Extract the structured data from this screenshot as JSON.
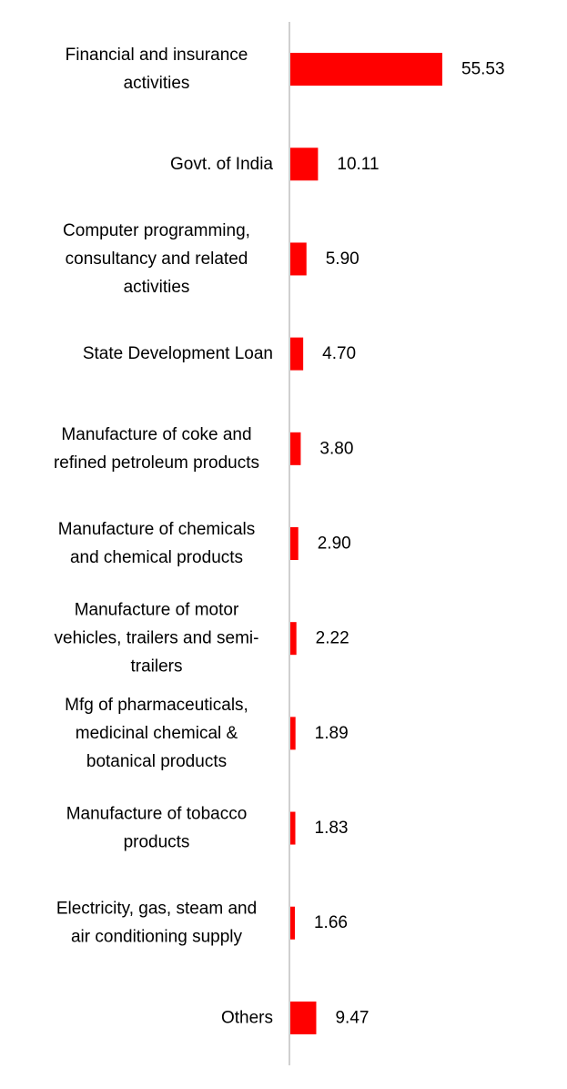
{
  "chart_data": {
    "type": "bar",
    "orientation": "horizontal",
    "categories": [
      [
        "Financial and insurance",
        "activities"
      ],
      [
        "Govt. of India"
      ],
      [
        "Computer programming,",
        "consultancy and related",
        "activities"
      ],
      [
        "State Development Loan"
      ],
      [
        "Manufacture of coke and",
        "refined petroleum products"
      ],
      [
        "Manufacture of chemicals",
        "and chemical products"
      ],
      [
        "Manufacture of motor",
        "vehicles, trailers and semi-",
        "trailers"
      ],
      [
        "Mfg of pharmaceuticals,",
        "medicinal chemical &",
        "botanical products"
      ],
      [
        "Manufacture of tobacco",
        "products"
      ],
      [
        "Electricity, gas, steam and",
        "air conditioning supply"
      ],
      [
        "Others"
      ]
    ],
    "values": [
      55.53,
      10.11,
      5.9,
      4.7,
      3.8,
      2.9,
      2.22,
      1.89,
      1.83,
      1.66,
      9.47
    ],
    "value_labels": [
      "55.53",
      "10.11",
      "5.90",
      "4.70",
      "3.80",
      "2.90",
      "2.22",
      "1.89",
      "1.83",
      "1.66",
      "9.47"
    ],
    "bar_color": "#ff0000",
    "axis_color": "#d0d0d0",
    "xlim": [
      0,
      60
    ],
    "grid": false,
    "legend": "none"
  }
}
